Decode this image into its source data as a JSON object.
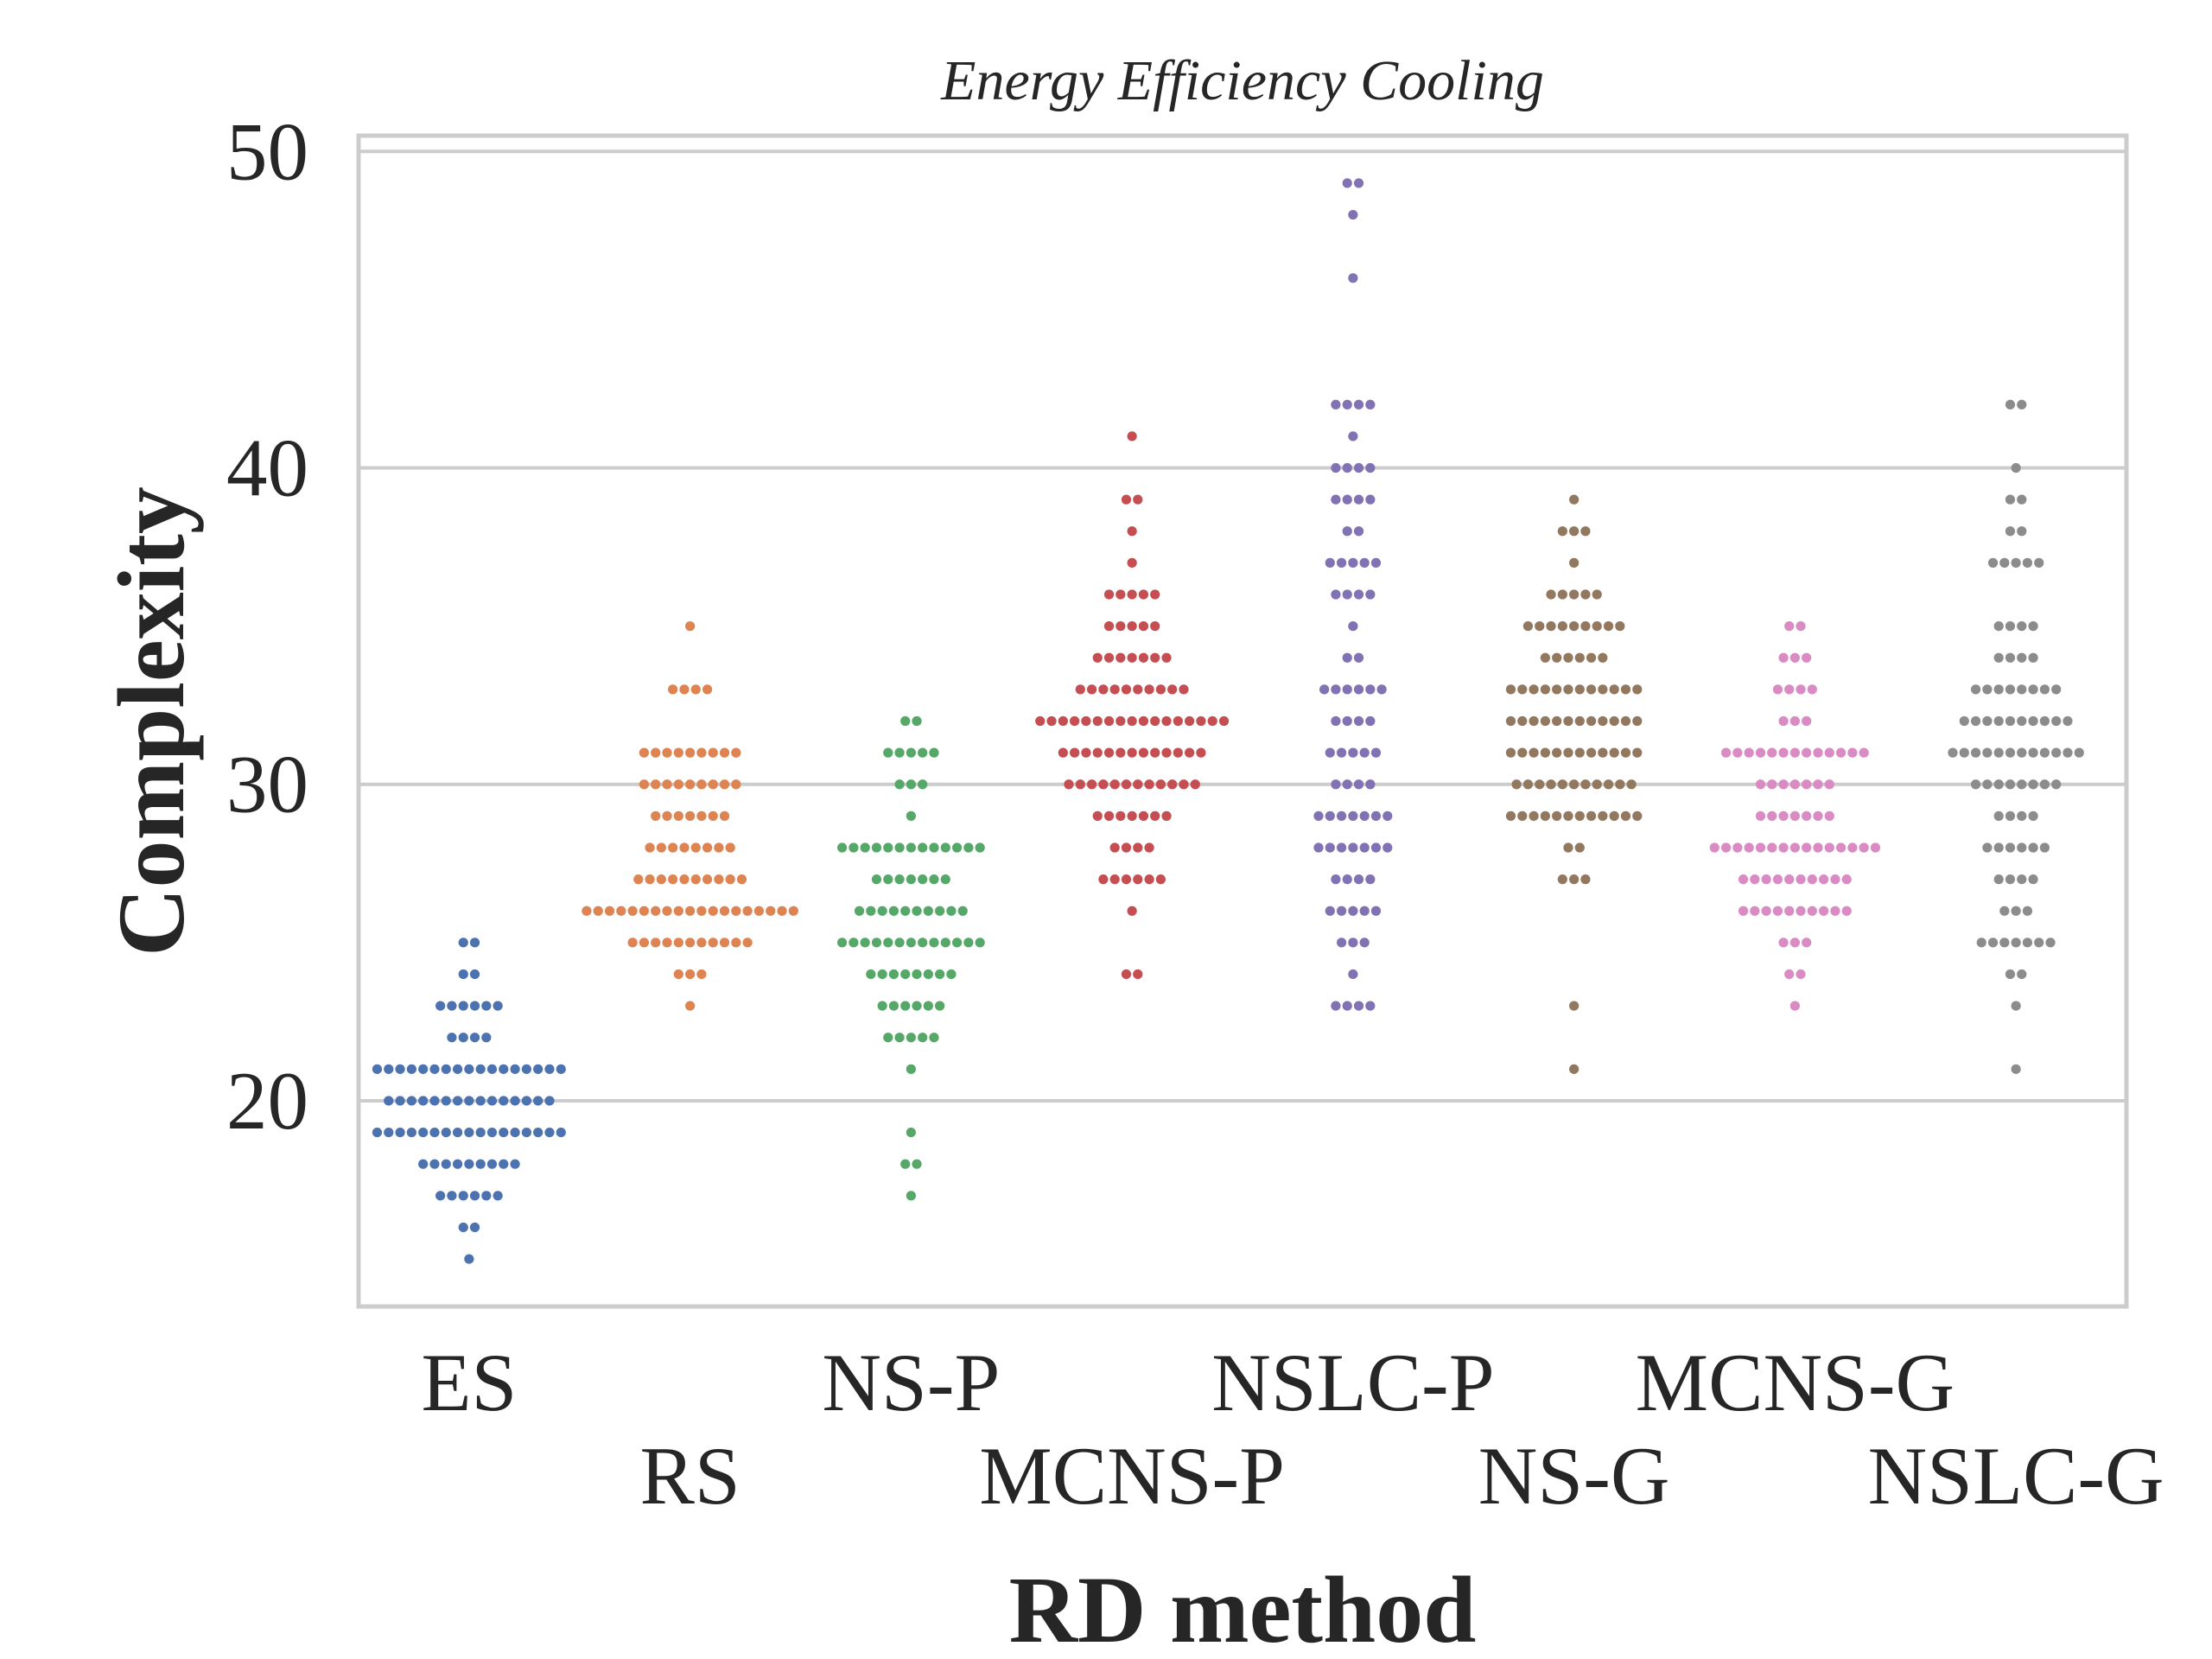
{
  "chart_data": {
    "type": "scatter",
    "subtype": "swarm",
    "title": "Energy Efficiency Cooling",
    "xlabel": "RD method",
    "ylabel": "Complexity",
    "ylim": [
      13.5,
      50.5
    ],
    "yticks": [
      20,
      30,
      40,
      50
    ],
    "grid": "horizontal",
    "categories": [
      "ES",
      "RS",
      "NS-P",
      "MCNS-P",
      "NSLC-P",
      "NS-G",
      "MCNS-G",
      "NSLC-G"
    ],
    "colors": [
      "#4c72b0",
      "#dd8452",
      "#55a868",
      "#c44e52",
      "#8172b3",
      "#937860",
      "#da8bc3",
      "#8c8c8c"
    ],
    "series": [
      {
        "category": "ES",
        "values": [
          25,
          25,
          24,
          24,
          23,
          23,
          23,
          23,
          23,
          23,
          22,
          22,
          22,
          22,
          21,
          21,
          21,
          21,
          21,
          21,
          21,
          21,
          21,
          21,
          21,
          21,
          21,
          21,
          21,
          21,
          21,
          20,
          20,
          20,
          20,
          20,
          20,
          20,
          20,
          20,
          20,
          20,
          20,
          20,
          20,
          20,
          19,
          19,
          19,
          19,
          19,
          19,
          19,
          19,
          19,
          19,
          19,
          19,
          19,
          19,
          19,
          19,
          19,
          18,
          18,
          18,
          18,
          18,
          18,
          18,
          18,
          18,
          17,
          17,
          17,
          17,
          17,
          17,
          16,
          16,
          15
        ]
      },
      {
        "category": "RS",
        "values": [
          35,
          33,
          33,
          33,
          33,
          31,
          31,
          31,
          31,
          31,
          31,
          31,
          31,
          31,
          30,
          30,
          30,
          30,
          30,
          30,
          30,
          30,
          30,
          29,
          29,
          29,
          29,
          29,
          29,
          29,
          28,
          28,
          28,
          28,
          28,
          28,
          28,
          28,
          27,
          27,
          27,
          27,
          27,
          27,
          27,
          27,
          27,
          27,
          26,
          26,
          26,
          26,
          26,
          26,
          26,
          26,
          26,
          26,
          26,
          26,
          26,
          26,
          26,
          26,
          26,
          26,
          26,
          25,
          25,
          25,
          25,
          25,
          25,
          25,
          25,
          25,
          25,
          25,
          24,
          24,
          24,
          23
        ]
      },
      {
        "category": "NS-P",
        "values": [
          32,
          32,
          31,
          31,
          31,
          31,
          31,
          30,
          30,
          30,
          29,
          28,
          28,
          28,
          28,
          28,
          28,
          28,
          28,
          28,
          28,
          28,
          28,
          28,
          27,
          27,
          27,
          27,
          27,
          27,
          27,
          26,
          26,
          26,
          26,
          26,
          26,
          26,
          26,
          26,
          26,
          25,
          25,
          25,
          25,
          25,
          25,
          25,
          25,
          25,
          25,
          25,
          25,
          25,
          24,
          24,
          24,
          24,
          24,
          24,
          24,
          24,
          23,
          23,
          23,
          23,
          23,
          23,
          22,
          22,
          22,
          22,
          22,
          21,
          19,
          18,
          18,
          17
        ]
      },
      {
        "category": "MCNS-P",
        "values": [
          41,
          39,
          39,
          38,
          37,
          36,
          36,
          36,
          36,
          36,
          35,
          35,
          35,
          35,
          35,
          34,
          34,
          34,
          34,
          34,
          34,
          34,
          33,
          33,
          33,
          33,
          33,
          33,
          33,
          33,
          33,
          33,
          32,
          32,
          32,
          32,
          32,
          32,
          32,
          32,
          32,
          32,
          32,
          32,
          32,
          32,
          32,
          32,
          32,
          31,
          31,
          31,
          31,
          31,
          31,
          31,
          31,
          31,
          31,
          31,
          31,
          31,
          30,
          30,
          30,
          30,
          30,
          30,
          30,
          30,
          30,
          30,
          30,
          30,
          29,
          29,
          29,
          29,
          29,
          29,
          29,
          28,
          28,
          28,
          28,
          27,
          27,
          27,
          27,
          27,
          27,
          26,
          24,
          24
        ]
      },
      {
        "category": "NSLC-P",
        "values": [
          49,
          49,
          48,
          46,
          42,
          42,
          42,
          42,
          41,
          40,
          40,
          40,
          40,
          39,
          39,
          39,
          39,
          38,
          38,
          37,
          37,
          37,
          37,
          37,
          36,
          36,
          36,
          36,
          35,
          34,
          34,
          33,
          33,
          33,
          33,
          33,
          33,
          32,
          32,
          32,
          32,
          31,
          31,
          31,
          31,
          31,
          30,
          30,
          30,
          30,
          29,
          29,
          29,
          29,
          29,
          29,
          29,
          28,
          28,
          28,
          28,
          28,
          28,
          28,
          27,
          27,
          27,
          27,
          26,
          26,
          26,
          26,
          26,
          25,
          25,
          25,
          24,
          23,
          23,
          23,
          23
        ]
      },
      {
        "category": "NS-G",
        "values": [
          39,
          38,
          38,
          38,
          37,
          36,
          36,
          36,
          36,
          36,
          35,
          35,
          35,
          35,
          35,
          35,
          35,
          35,
          35,
          34,
          34,
          34,
          34,
          34,
          34,
          33,
          33,
          33,
          33,
          33,
          33,
          33,
          33,
          33,
          33,
          33,
          33,
          32,
          32,
          32,
          32,
          32,
          32,
          32,
          32,
          32,
          32,
          32,
          32,
          31,
          31,
          31,
          31,
          31,
          31,
          31,
          31,
          31,
          31,
          31,
          31,
          30,
          30,
          30,
          30,
          30,
          30,
          30,
          30,
          30,
          30,
          30,
          29,
          29,
          29,
          29,
          29,
          29,
          29,
          29,
          29,
          29,
          29,
          29,
          28,
          28,
          27,
          27,
          27,
          23,
          21
        ]
      },
      {
        "category": "MCNS-G",
        "values": [
          35,
          35,
          34,
          34,
          34,
          33,
          33,
          33,
          33,
          32,
          32,
          32,
          31,
          31,
          31,
          31,
          31,
          31,
          31,
          31,
          31,
          31,
          31,
          31,
          31,
          30,
          30,
          30,
          30,
          30,
          30,
          30,
          29,
          29,
          29,
          29,
          29,
          29,
          29,
          28,
          28,
          28,
          28,
          28,
          28,
          28,
          28,
          28,
          28,
          28,
          28,
          28,
          28,
          28,
          27,
          27,
          27,
          27,
          27,
          27,
          27,
          27,
          27,
          27,
          26,
          26,
          26,
          26,
          26,
          26,
          26,
          26,
          26,
          26,
          25,
          25,
          25,
          24,
          24,
          23
        ]
      },
      {
        "category": "NSLC-G",
        "values": [
          42,
          42,
          40,
          39,
          39,
          38,
          38,
          37,
          37,
          37,
          37,
          37,
          35,
          35,
          35,
          35,
          34,
          34,
          34,
          34,
          33,
          33,
          33,
          33,
          33,
          33,
          33,
          33,
          32,
          32,
          32,
          32,
          32,
          32,
          32,
          32,
          32,
          32,
          31,
          31,
          31,
          31,
          31,
          31,
          31,
          31,
          31,
          31,
          31,
          31,
          30,
          30,
          30,
          30,
          30,
          30,
          30,
          30,
          29,
          29,
          29,
          29,
          28,
          28,
          28,
          28,
          28,
          28,
          27,
          27,
          27,
          27,
          26,
          26,
          26,
          25,
          25,
          25,
          25,
          25,
          25,
          25,
          24,
          24,
          23,
          21
        ]
      }
    ]
  }
}
